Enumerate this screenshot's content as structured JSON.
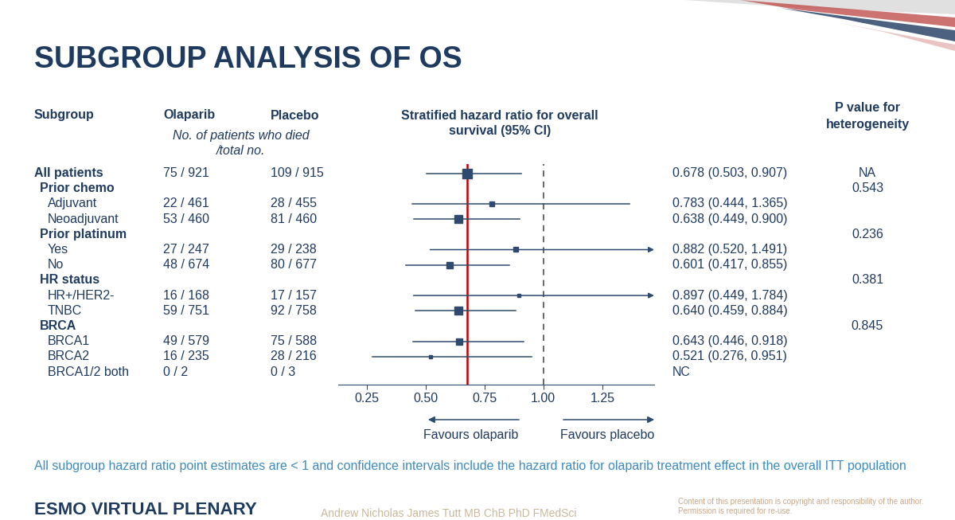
{
  "chart_data": {
    "type": "forest",
    "title": "SUBGROUP ANALYSIS OF OS",
    "columns": {
      "subgroup": "Subgroup",
      "olaparib": "Olaparib",
      "placebo": "Placebo",
      "counts_note": [
        "No. of patients who died",
        "/total no."
      ],
      "hr": [
        "Stratified hazard ratio for overall",
        "survival (95% CI)"
      ],
      "p": [
        "P value for",
        "heterogeneity"
      ]
    },
    "overall": {
      "label": "All patients",
      "olaparib": "75 / 921",
      "placebo": "109 / 915",
      "hr": 0.678,
      "ci": [
        0.503,
        0.907
      ],
      "hr_label": "0.678 (0.503, 0.907)",
      "p_heterogeneity": "NA"
    },
    "groups": [
      {
        "label": "Prior chemo",
        "p_heterogeneity": 0.543,
        "subgroups": [
          {
            "label": "Adjuvant",
            "olaparib": "22 / 461",
            "placebo": "28 / 455",
            "hr": 0.783,
            "ci": [
              0.444,
              1.365
            ],
            "hr_label": "0.783 (0.444, 1.365)"
          },
          {
            "label": "Neoadjuvant",
            "olaparib": "53 / 460",
            "placebo": "81 / 460",
            "hr": 0.638,
            "ci": [
              0.449,
              0.9
            ],
            "hr_label": "0.638 (0.449, 0.900)"
          }
        ]
      },
      {
        "label": "Prior platinum",
        "p_heterogeneity": 0.236,
        "subgroups": [
          {
            "label": "Yes",
            "olaparib": "27 / 247",
            "placebo": "29 / 238",
            "hr": 0.882,
            "ci": [
              0.52,
              1.491
            ],
            "hr_label": "0.882 (0.520, 1.491)"
          },
          {
            "label": "No",
            "olaparib": "48 / 674",
            "placebo": "80 / 677",
            "hr": 0.601,
            "ci": [
              0.417,
              0.855
            ],
            "hr_label": "0.601 (0.417, 0.855)"
          }
        ]
      },
      {
        "label": "HR status",
        "p_heterogeneity": 0.381,
        "subgroups": [
          {
            "label": "HR+/HER2-",
            "olaparib": "16 / 168",
            "placebo": "17 / 157",
            "hr": 0.897,
            "ci": [
              0.449,
              1.784
            ],
            "hr_label": "0.897 (0.449, 1.784)"
          },
          {
            "label": "TNBC",
            "olaparib": "59 / 751",
            "placebo": "92 / 758",
            "hr": 0.64,
            "ci": [
              0.459,
              0.884
            ],
            "hr_label": "0.640 (0.459, 0.884)"
          }
        ]
      },
      {
        "label": "BRCA",
        "p_heterogeneity": 0.845,
        "subgroups": [
          {
            "label": "BRCA1",
            "olaparib": "49 / 579",
            "placebo": "75 / 588",
            "hr": 0.643,
            "ci": [
              0.446,
              0.918
            ],
            "hr_label": "0.643 (0.446, 0.918)"
          },
          {
            "label": "BRCA2",
            "olaparib": "16 / 235",
            "placebo": "28 / 216",
            "hr": 0.521,
            "ci": [
              0.276,
              0.951
            ],
            "hr_label": "0.521 (0.276, 0.951)"
          },
          {
            "label": "BRCA1/2 both",
            "olaparib": "0 / 2",
            "placebo": "0 / 3",
            "hr": null,
            "ci": null,
            "hr_label": "NC"
          }
        ]
      }
    ],
    "xlim": [
      0.13,
      1.47
    ],
    "xticks": [
      {
        "value": 0.25,
        "label": "0.25"
      },
      {
        "value": 0.5,
        "label": "0.50"
      },
      {
        "value": 0.75,
        "label": "0.75"
      },
      {
        "value": 1.0,
        "label": "1.00"
      },
      {
        "value": 1.25,
        "label": "1.25"
      }
    ],
    "reference": 1.0,
    "favours_left": "Favours olaparib",
    "favours_right": "Favours placebo",
    "footnote": "All subgroup hazard ratio point estimates are < 1 and confidence intervals include the hazard ratio for olaparib treatment effect in the overall ITT population",
    "footer": "ESMO VIRTUAL PLENARY",
    "author": "Andrew Nicholas James Tutt MB ChB PhD FMedSci",
    "copyright": [
      "Content of this presentation is copyright and responsibility of the author.",
      "Permission is required for re-use."
    ]
  }
}
